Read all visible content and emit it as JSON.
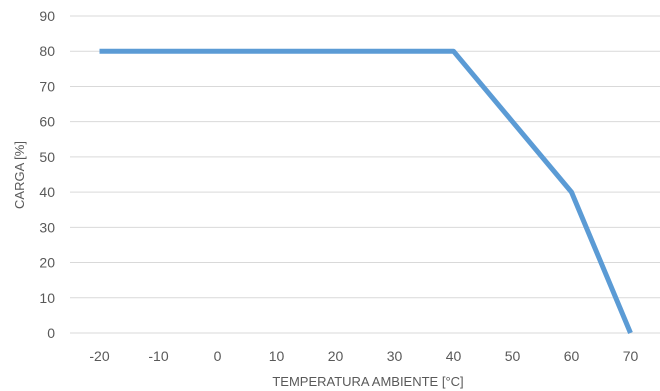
{
  "chart_data": {
    "type": "line",
    "title": "",
    "xlabel": "TEMPERATURA AMBIENTE [°C]",
    "ylabel": "CARGA [%]",
    "x_categories": [
      "-20",
      "-10",
      "0",
      "10",
      "20",
      "30",
      "40",
      "50",
      "60",
      "70"
    ],
    "y_ticks": [
      0,
      10,
      20,
      30,
      40,
      50,
      60,
      70,
      80,
      90
    ],
    "ylim": [
      0,
      90
    ],
    "grid": true,
    "legend": "none",
    "series": [
      {
        "values": [
          80,
          80,
          80,
          80,
          80,
          80,
          80,
          60,
          40,
          0
        ],
        "color": "#5b9bd5"
      }
    ]
  }
}
